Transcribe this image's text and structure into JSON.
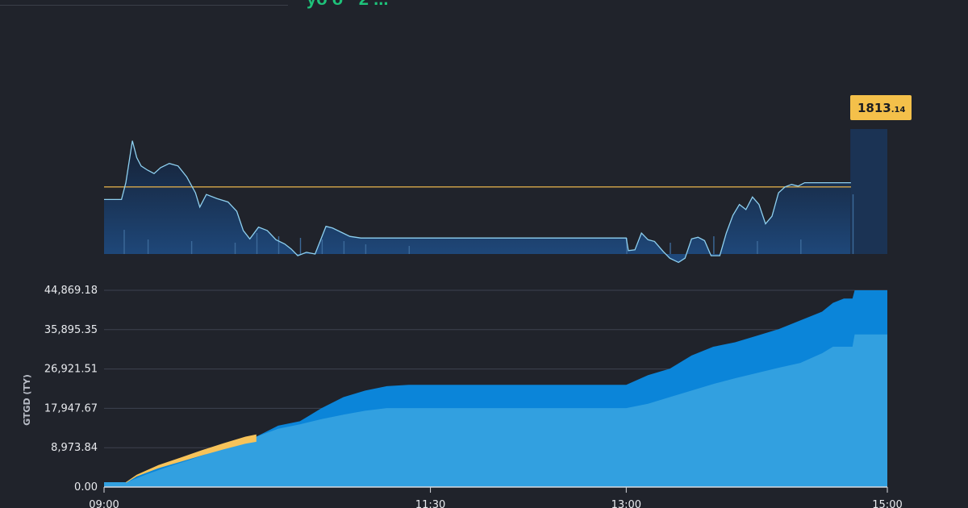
{
  "header": {
    "fragment": "yo  o  ·  2 ..."
  },
  "chart_data": [
    {
      "type": "line",
      "price_label_int": "1813",
      "price_label_dec": ".14",
      "colors": {
        "line": "#8ed0f0",
        "reference": "#d8a94a",
        "badge": "#f4c04a",
        "area_top": "#152033",
        "area_bottom": "#1f4a7e",
        "volume": "#3c6a9a"
      },
      "x_range": [
        "09:00",
        "15:00"
      ],
      "y_range": [
        1805,
        1830
      ],
      "reference": 1813,
      "open_value": 1811.5,
      "series": [
        {
          "values": [
            [
              "09:00",
              1811.5
            ],
            [
              "09:08",
              1811.5
            ],
            [
              "09:10",
              1813.5
            ],
            [
              "09:13",
              1818.5
            ],
            [
              "09:15",
              1816.5
            ],
            [
              "09:17",
              1815.5
            ],
            [
              "09:20",
              1815.0
            ],
            [
              "09:23",
              1814.6
            ],
            [
              "09:26",
              1815.3
            ],
            [
              "09:30",
              1815.8
            ],
            [
              "09:34",
              1815.5
            ],
            [
              "09:38",
              1814.2
            ],
            [
              "09:42",
              1812.3
            ],
            [
              "09:44",
              1810.6
            ],
            [
              "09:47",
              1812.1
            ],
            [
              "09:52",
              1811.6
            ],
            [
              "09:57",
              1811.2
            ],
            [
              "10:01",
              1810.1
            ],
            [
              "10:04",
              1807.8
            ],
            [
              "10:07",
              1806.8
            ],
            [
              "10:11",
              1808.2
            ],
            [
              "10:15",
              1807.8
            ],
            [
              "10:19",
              1806.7
            ],
            [
              "10:23",
              1806.2
            ],
            [
              "10:26",
              1805.6
            ],
            [
              "10:29",
              1804.8
            ],
            [
              "10:33",
              1805.2
            ],
            [
              "10:37",
              1805.0
            ],
            [
              "10:42",
              1808.3
            ],
            [
              "10:45",
              1808.1
            ],
            [
              "10:49",
              1807.6
            ],
            [
              "10:53",
              1807.1
            ],
            [
              "10:58",
              1806.9
            ],
            [
              "11:15",
              1806.9
            ],
            [
              "12:00",
              1806.9
            ],
            [
              "12:32",
              1806.9
            ],
            [
              "13:00",
              1806.9
            ],
            [
              "13:01",
              1805.4
            ],
            [
              "13:04",
              1805.5
            ],
            [
              "13:07",
              1807.5
            ],
            [
              "13:10",
              1806.7
            ],
            [
              "13:13",
              1806.5
            ],
            [
              "13:17",
              1805.3
            ],
            [
              "13:20",
              1804.5
            ],
            [
              "13:24",
              1804.0
            ],
            [
              "13:27",
              1804.5
            ],
            [
              "13:30",
              1806.8
            ],
            [
              "13:33",
              1807.0
            ],
            [
              "13:36",
              1806.6
            ],
            [
              "13:39",
              1804.8
            ],
            [
              "13:43",
              1804.8
            ],
            [
              "13:46",
              1807.5
            ],
            [
              "13:49",
              1809.6
            ],
            [
              "13:52",
              1810.9
            ],
            [
              "13:55",
              1810.3
            ],
            [
              "13:58",
              1811.8
            ],
            [
              "14:01",
              1810.9
            ],
            [
              "14:04",
              1808.6
            ],
            [
              "14:07",
              1809.5
            ],
            [
              "14:10",
              1812.3
            ],
            [
              "14:13",
              1813.0
            ],
            [
              "14:16",
              1813.3
            ],
            [
              "14:19",
              1813.1
            ],
            [
              "14:22",
              1813.5
            ],
            [
              "14:27",
              1813.5
            ],
            [
              "14:43",
              1813.5
            ]
          ]
        }
      ],
      "volume": [
        [
          "09:09",
          30
        ],
        [
          "09:20",
          18
        ],
        [
          "09:40",
          16
        ],
        [
          "10:00",
          14
        ],
        [
          "10:10",
          26
        ],
        [
          "10:20",
          22
        ],
        [
          "10:30",
          20
        ],
        [
          "10:40",
          18
        ],
        [
          "10:50",
          16
        ],
        [
          "11:00",
          12
        ],
        [
          "11:20",
          10
        ],
        [
          "13:00",
          20
        ],
        [
          "13:20",
          14
        ],
        [
          "13:40",
          22
        ],
        [
          "14:00",
          16
        ],
        [
          "14:20",
          18
        ],
        [
          "14:44",
          74
        ]
      ]
    },
    {
      "type": "area",
      "ylabel": "GTGD (TY)",
      "x_ticks": [
        "09:00",
        "11:30",
        "13:00",
        "15:00"
      ],
      "y_ticks": [
        "0.00",
        "8,973.84",
        "17,947.67",
        "26,921.51",
        "35,895.35",
        "44,869.18"
      ],
      "y_range": [
        0,
        44869.18
      ],
      "colors": {
        "total": "#0b85d9",
        "light": "#32a0e0",
        "orange": "#f7c35a",
        "grid": "#3d4250",
        "axis": "#d7dadf"
      },
      "series": [
        {
          "name": "",
          "values": [
            [
              "09:00",
              1100
            ],
            [
              "09:10",
              1100
            ],
            [
              "09:12",
              1600
            ],
            [
              "09:20",
              3600
            ],
            [
              "09:30",
              5500
            ],
            [
              "09:40",
              7200
            ],
            [
              "09:50",
              8800
            ],
            [
              "10:00",
              10200
            ],
            [
              "10:10",
              11500
            ],
            [
              "10:20",
              14000
            ],
            [
              "10:30",
              15000
            ],
            [
              "10:40",
              18000
            ],
            [
              "10:50",
              20500
            ],
            [
              "11:00",
              22000
            ],
            [
              "11:10",
              23000
            ],
            [
              "11:20",
              23300
            ],
            [
              "11:30",
              23300
            ],
            [
              "12:00",
              23300
            ],
            [
              "12:30",
              23300
            ],
            [
              "13:00",
              23300
            ],
            [
              "13:10",
              25500
            ],
            [
              "13:20",
              27000
            ],
            [
              "13:30",
              30000
            ],
            [
              "13:40",
              32000
            ],
            [
              "13:50",
              33000
            ],
            [
              "14:00",
              34500
            ],
            [
              "14:10",
              36000
            ],
            [
              "14:20",
              38000
            ],
            [
              "14:30",
              40000
            ],
            [
              "14:35",
              42000
            ],
            [
              "14:40",
              43000
            ],
            [
              "14:44",
              43000
            ],
            [
              "14:45",
              44869
            ],
            [
              "15:00",
              44869
            ]
          ]
        },
        {
          "name": "",
          "values": [
            [
              "09:00",
              1100
            ],
            [
              "09:10",
              1100
            ],
            [
              "09:12",
              1400
            ],
            [
              "09:20",
              3000
            ],
            [
              "09:30",
              4700
            ],
            [
              "09:40",
              6300
            ],
            [
              "09:50",
              8000
            ],
            [
              "10:00",
              9300
            ],
            [
              "10:10",
              11500
            ],
            [
              "10:20",
              13300
            ],
            [
              "10:30",
              14300
            ],
            [
              "10:40",
              15500
            ],
            [
              "10:50",
              16500
            ],
            [
              "11:00",
              17400
            ],
            [
              "11:10",
              18000
            ],
            [
              "11:30",
              18000
            ],
            [
              "12:00",
              18000
            ],
            [
              "13:00",
              18000
            ],
            [
              "13:10",
              19000
            ],
            [
              "13:20",
              20500
            ],
            [
              "13:30",
              22000
            ],
            [
              "13:40",
              23500
            ],
            [
              "13:50",
              24800
            ],
            [
              "14:00",
              26000
            ],
            [
              "14:10",
              27200
            ],
            [
              "14:20",
              28300
            ],
            [
              "14:30",
              30500
            ],
            [
              "14:35",
              32000
            ],
            [
              "14:44",
              32000
            ],
            [
              "14:45",
              34800
            ],
            [
              "15:00",
              34800
            ]
          ]
        },
        {
          "name": "",
          "values": [
            [
              "09:10",
              1100
            ],
            [
              "09:15",
              2800
            ],
            [
              "09:25",
              5000
            ],
            [
              "09:35",
              6700
            ],
            [
              "09:45",
              8400
            ],
            [
              "09:55",
              10000
            ],
            [
              "10:05",
              11500
            ],
            [
              "10:10",
              12000
            ]
          ]
        }
      ]
    }
  ]
}
